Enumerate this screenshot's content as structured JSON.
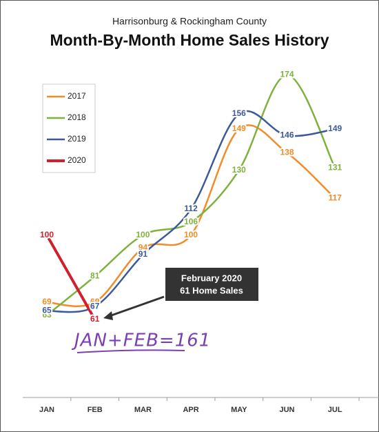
{
  "chart_data": {
    "type": "line",
    "subtitle": "Harrisonburg & Rockingham County",
    "title": "Month-By-Month Home Sales History",
    "categories": [
      "JAN",
      "FEB",
      "MAR",
      "APR",
      "MAY",
      "JUN",
      "JUL"
    ],
    "series": [
      {
        "name": "2017",
        "color": "#f28c28",
        "values": [
          69,
          69,
          94,
          100,
          149,
          138,
          117
        ]
      },
      {
        "name": "2018",
        "color": "#7fb13d",
        "values": [
          63,
          81,
          100,
          106,
          130,
          174,
          131
        ]
      },
      {
        "name": "2019",
        "color": "#3c5a99",
        "values": [
          65,
          67,
          91,
          112,
          156,
          146,
          149
        ]
      },
      {
        "name": "2020",
        "color": "#d0202e",
        "values": [
          100,
          61,
          null,
          null,
          null,
          null,
          null
        ]
      }
    ],
    "ylim": [
      25,
      200
    ],
    "legend": "top-left",
    "annotations": [
      "February 2020",
      "61 Home Sales",
      "JAN+FEB=161"
    ]
  }
}
